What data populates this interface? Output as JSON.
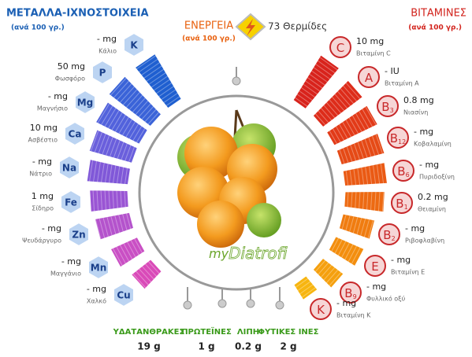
{
  "minerals": {
    "title": "ΜΕΤΑΛΛΑ-ΙΧΝΟΣΤΟΙΧΕΙΑ",
    "subtitle": "(ανά 100 γρ.)",
    "items": [
      {
        "symbol": "K",
        "amount": "- mg",
        "name": "Κάλιο"
      },
      {
        "symbol": "P",
        "amount": "50 mg",
        "name": "Φωσφόρο"
      },
      {
        "symbol": "Mg",
        "amount": "- mg",
        "name": "Μαγνήσιο"
      },
      {
        "symbol": "Ca",
        "amount": "10 mg",
        "name": "Ασβέστιο"
      },
      {
        "symbol": "Na",
        "amount": "- mg",
        "name": "Νάτριο"
      },
      {
        "symbol": "Fe",
        "amount": "1 mg",
        "name": "Σίδηρο"
      },
      {
        "symbol": "Zn",
        "amount": "- mg",
        "name": "Ψευδάργυρο"
      },
      {
        "symbol": "Mn",
        "amount": "- mg",
        "name": "Μαγγάνιο"
      },
      {
        "symbol": "Cu",
        "amount": "- mg",
        "name": "Χαλκό"
      }
    ]
  },
  "energy": {
    "title": "ΕΝΕΡΓΕΙΑ",
    "subtitle": "(ανά 100 γρ.)",
    "value": "73 Θερμίδες"
  },
  "vitamins": {
    "title": "ΒΙΤΑΜΙΝΕΣ",
    "subtitle": "(ανά 100 γρ.)",
    "items": [
      {
        "symbol": "C",
        "amount": "10 mg",
        "name": "Βιταμίνη C"
      },
      {
        "symbol": "A",
        "amount": "- IU",
        "name": "Βιταμίνη A"
      },
      {
        "symbol": "B",
        "sub": "3",
        "amount": "0.8 mg",
        "name": "Νιασίνη"
      },
      {
        "symbol": "B",
        "sub": "12",
        "amount": "- mg",
        "name": "Κοβαλαμίνη"
      },
      {
        "symbol": "B",
        "sub": "6",
        "amount": "- mg",
        "name": "Πυριδοξίνη"
      },
      {
        "symbol": "B",
        "sub": "1",
        "amount": "0.2 mg",
        "name": "Θειαμίνη"
      },
      {
        "symbol": "B",
        "sub": "2",
        "amount": "- mg",
        "name": "Ριβοφλαβίνη"
      },
      {
        "symbol": "E",
        "amount": "- mg",
        "name": "Βιταμίνη E"
      },
      {
        "symbol": "B",
        "sub": "9",
        "amount": "- mg",
        "name": "Φυλλικό οξύ"
      },
      {
        "symbol": "K",
        "amount": "- mg",
        "name": "Βιταμίνη K"
      }
    ]
  },
  "macros": [
    {
      "label": "ΥΔΑΤΑΝΘΡΑΚΕΣ",
      "value": "19 g"
    },
    {
      "label": "ΠΡΩΤΕΪΝΕΣ",
      "value": "1 g"
    },
    {
      "label": "ΛΙΠΗ",
      "value": "0.2 g"
    },
    {
      "label": "ΦΥΤΙΚΕΣ ΙΝΕΣ",
      "value": "2 g"
    }
  ],
  "logo": {
    "prefix": "my",
    "main": "Diatrofi"
  }
}
